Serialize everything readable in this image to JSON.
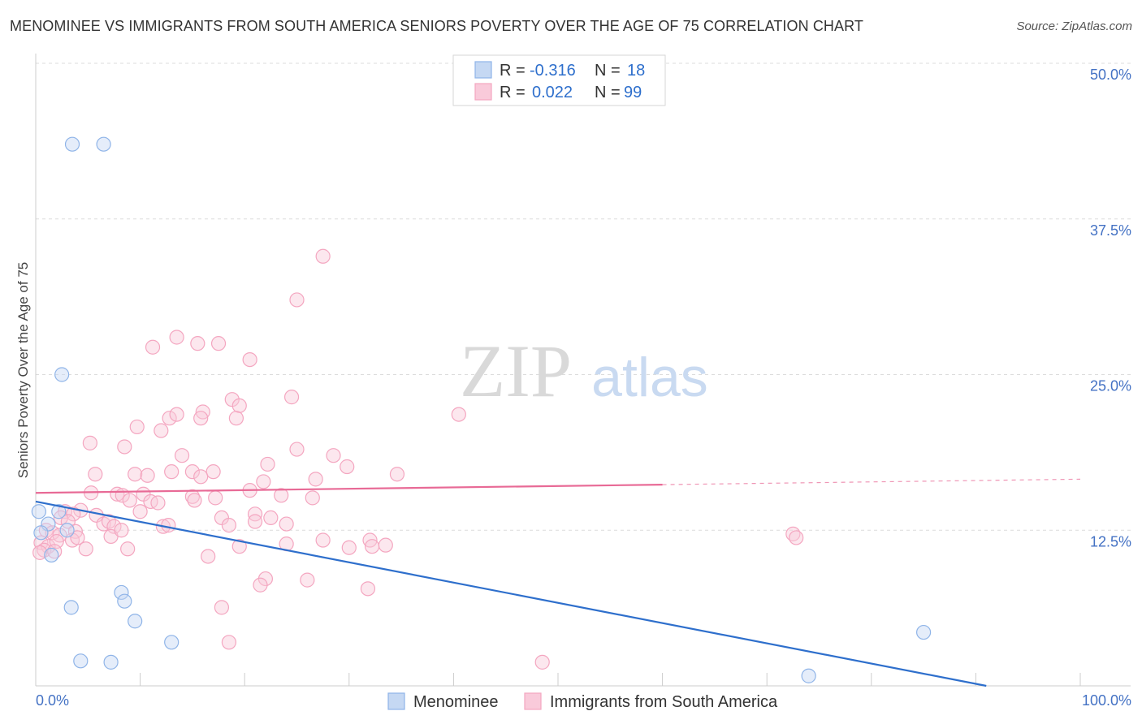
{
  "title": "MENOMINEE VS IMMIGRANTS FROM SOUTH AMERICA SENIORS POVERTY OVER THE AGE OF 75 CORRELATION CHART",
  "source": "Source: ZipAtlas.com",
  "watermark": {
    "zip": "ZIP",
    "atlas": "atlas"
  },
  "legend": {
    "r_label": "R =",
    "n_label": "N =",
    "rows": [
      {
        "r": "-0.316",
        "n": "18"
      },
      {
        "r": "0.022",
        "n": "99"
      }
    ]
  },
  "chart_data": {
    "type": "scatter",
    "title": "MENOMINEE VS IMMIGRANTS FROM SOUTH AMERICA SENIORS POVERTY OVER THE AGE OF 75 CORRELATION CHART",
    "xlabel": "",
    "ylabel": "Seniors Poverty Over the Age of 75",
    "xlim": [
      0,
      100
    ],
    "ylim": [
      0,
      50
    ],
    "x_tick_labels": [
      "0.0%",
      "100.0%"
    ],
    "y_ticks": [
      12.5,
      25.0,
      37.5,
      50.0
    ],
    "y_tick_labels": [
      "12.5%",
      "25.0%",
      "37.5%",
      "50.0%"
    ],
    "grid": "horizontal dashed",
    "legend_position": "top-center",
    "colors": {
      "menominee": "#8fb4e8",
      "immigrants": "#f4a6c0",
      "menominee_line": "#2e6fcc",
      "immigrants_line": "#e86a96"
    },
    "series": [
      {
        "name": "Menominee",
        "r": -0.316,
        "n": 18,
        "trend": {
          "x0": 0,
          "y0": 14.8,
          "x1": 91,
          "y1": 0,
          "dashed_from": null
        },
        "points": [
          [
            3.5,
            43.5
          ],
          [
            6.5,
            43.5
          ],
          [
            2.5,
            25.0
          ],
          [
            0.3,
            14.0
          ],
          [
            1.2,
            13.0
          ],
          [
            2.2,
            14.0
          ],
          [
            3.0,
            12.5
          ],
          [
            1.5,
            10.5
          ],
          [
            8.2,
            7.5
          ],
          [
            8.5,
            6.8
          ],
          [
            3.4,
            6.3
          ],
          [
            9.5,
            5.2
          ],
          [
            13.0,
            3.5
          ],
          [
            4.3,
            2.0
          ],
          [
            7.2,
            1.9
          ],
          [
            85.0,
            4.3
          ],
          [
            74.0,
            0.8
          ],
          [
            0.5,
            12.3
          ]
        ]
      },
      {
        "name": "Immigrants from South America",
        "r": 0.022,
        "n": 99,
        "trend": {
          "x0": 0,
          "y0": 15.5,
          "x1": 100,
          "y1": 16.6,
          "dashed_from": 60
        },
        "points": [
          [
            27.5,
            34.5
          ],
          [
            25.0,
            31.0
          ],
          [
            13.5,
            28.0
          ],
          [
            15.5,
            27.5
          ],
          [
            17.5,
            27.5
          ],
          [
            11.2,
            27.2
          ],
          [
            20.5,
            26.2
          ],
          [
            24.5,
            23.2
          ],
          [
            18.8,
            23.0
          ],
          [
            19.5,
            22.5
          ],
          [
            16.0,
            22.0
          ],
          [
            12.8,
            21.5
          ],
          [
            13.5,
            21.8
          ],
          [
            15.8,
            21.5
          ],
          [
            19.2,
            21.5
          ],
          [
            9.7,
            20.8
          ],
          [
            12.0,
            20.5
          ],
          [
            40.5,
            21.8
          ],
          [
            5.2,
            19.5
          ],
          [
            8.5,
            19.2
          ],
          [
            25.0,
            19.0
          ],
          [
            14.0,
            18.5
          ],
          [
            28.5,
            18.5
          ],
          [
            29.8,
            17.6
          ],
          [
            22.2,
            17.8
          ],
          [
            17.0,
            17.2
          ],
          [
            13.0,
            17.2
          ],
          [
            15.0,
            17.2
          ],
          [
            5.7,
            17.0
          ],
          [
            9.5,
            17.0
          ],
          [
            10.7,
            16.9
          ],
          [
            15.8,
            16.8
          ],
          [
            26.8,
            16.6
          ],
          [
            21.8,
            16.4
          ],
          [
            34.6,
            17.0
          ],
          [
            20.5,
            15.7
          ],
          [
            5.3,
            15.5
          ],
          [
            7.8,
            15.4
          ],
          [
            8.3,
            15.3
          ],
          [
            10.3,
            15.4
          ],
          [
            15.0,
            15.2
          ],
          [
            17.2,
            15.1
          ],
          [
            23.5,
            15.3
          ],
          [
            26.5,
            15.1
          ],
          [
            11.0,
            14.8
          ],
          [
            11.7,
            14.7
          ],
          [
            9.0,
            14.9
          ],
          [
            15.2,
            14.9
          ],
          [
            4.3,
            14.1
          ],
          [
            10.0,
            14.0
          ],
          [
            2.8,
            14.0
          ],
          [
            3.6,
            13.8
          ],
          [
            5.8,
            13.7
          ],
          [
            21.0,
            13.8
          ],
          [
            22.5,
            13.5
          ],
          [
            17.8,
            13.5
          ],
          [
            2.4,
            13.5
          ],
          [
            3.1,
            13.2
          ],
          [
            6.5,
            13.0
          ],
          [
            7.0,
            13.2
          ],
          [
            7.5,
            12.8
          ],
          [
            12.2,
            12.8
          ],
          [
            12.7,
            12.9
          ],
          [
            18.5,
            12.9
          ],
          [
            21.0,
            13.2
          ],
          [
            24.0,
            13.0
          ],
          [
            1.0,
            12.5
          ],
          [
            1.6,
            12.3
          ],
          [
            2.3,
            12.1
          ],
          [
            3.8,
            12.4
          ],
          [
            7.2,
            12.0
          ],
          [
            8.2,
            12.5
          ],
          [
            0.5,
            11.5
          ],
          [
            1.2,
            11.2
          ],
          [
            2.0,
            11.6
          ],
          [
            3.5,
            11.7
          ],
          [
            4.0,
            11.9
          ],
          [
            0.8,
            10.9
          ],
          [
            1.8,
            10.8
          ],
          [
            4.8,
            11.0
          ],
          [
            8.8,
            11.0
          ],
          [
            19.5,
            11.2
          ],
          [
            24.0,
            11.4
          ],
          [
            27.5,
            11.7
          ],
          [
            30.0,
            11.1
          ],
          [
            32.0,
            11.7
          ],
          [
            32.2,
            11.2
          ],
          [
            33.5,
            11.3
          ],
          [
            0.4,
            10.7
          ],
          [
            16.5,
            10.4
          ],
          [
            22.0,
            8.6
          ],
          [
            21.5,
            8.1
          ],
          [
            26.0,
            8.5
          ],
          [
            31.8,
            7.8
          ],
          [
            17.8,
            6.3
          ],
          [
            18.5,
            3.5
          ],
          [
            72.5,
            12.2
          ],
          [
            72.8,
            11.9
          ],
          [
            48.5,
            1.9
          ]
        ]
      }
    ]
  }
}
